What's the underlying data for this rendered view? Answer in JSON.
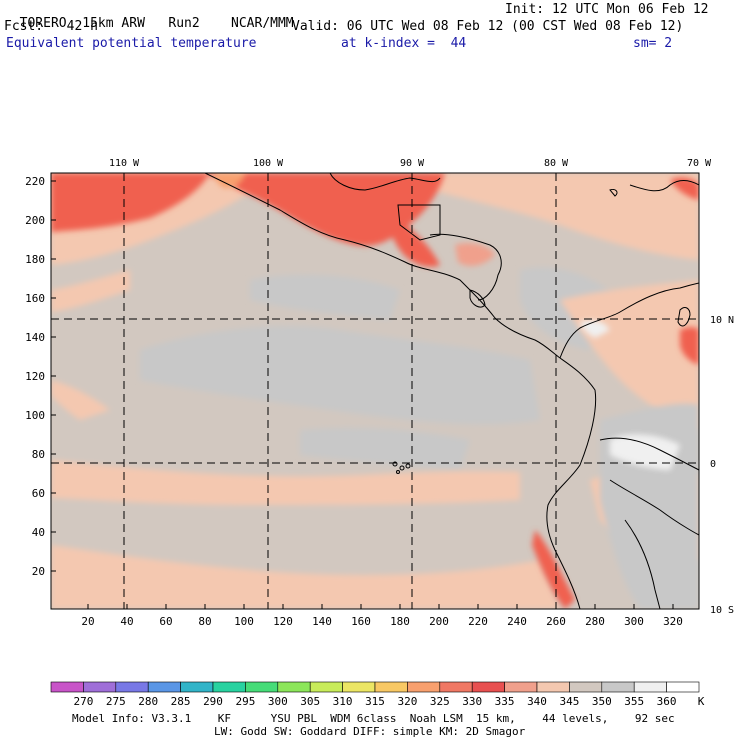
{
  "header": {
    "model": "TORERO",
    "resolution": "15km ARW",
    "run": "Run2",
    "org": "NCAR/MMM",
    "init": "Init: 12 UTC Mon 06 Feb 12",
    "fcst_label": "Fcst:",
    "fcst_value": "42 h",
    "valid": "Valid: 06 UTC Wed 08 Feb 12 (00 CST Wed 08 Feb 12)",
    "field": "Equivalent potential temperature",
    "level": "at k-index =  44",
    "smoothing": "sm= 2"
  },
  "map": {
    "top_lon_labels": [
      "110 W",
      "100 W",
      "90 W",
      "80 W",
      "70 W"
    ],
    "right_lat_labels": [
      "10 N",
      "0",
      "10 S"
    ],
    "left_y_ticks": [
      "220",
      "200",
      "180",
      "160",
      "140",
      "120",
      "100",
      "80",
      "60",
      "40",
      "20"
    ],
    "bottom_x_ticks": [
      "20",
      "40",
      "60",
      "80",
      "100",
      "120",
      "140",
      "160",
      "180",
      "200",
      "220",
      "240",
      "260",
      "280",
      "300",
      "320"
    ]
  },
  "colorbar": {
    "labels": [
      "270",
      "275",
      "280",
      "285",
      "290",
      "295",
      "300",
      "305",
      "310",
      "315",
      "320",
      "325",
      "330",
      "335",
      "340",
      "345",
      "350",
      "355",
      "360"
    ],
    "unit": "K",
    "colors": [
      "#c854c8",
      "#9f6ed8",
      "#7878e6",
      "#5a96e6",
      "#32b4c8",
      "#28d2a0",
      "#46dc78",
      "#8ce65a",
      "#c8ec5a",
      "#ece664",
      "#f8c864",
      "#f8a06e",
      "#f07864",
      "#e85050",
      "#f0a08c",
      "#f4c8b0",
      "#d2c8c0",
      "#c8c8c8",
      "#f0f0f0"
    ]
  },
  "footer": {
    "line1": "Model Info: V3.3.1    KF      YSU PBL  WDM 6class  Noah LSM  15 km,    44 levels,    92 sec",
    "line2": "LW: Godd SW: Goddard DIFF: simple KM: 2D Smagor"
  },
  "colors": {
    "land_warm": "#f4c8b0",
    "ocean_grey": "#d2c8c0",
    "ocean_light": "#c8c8c8",
    "hot_red": "#f06050",
    "coast_line": "#000000"
  }
}
